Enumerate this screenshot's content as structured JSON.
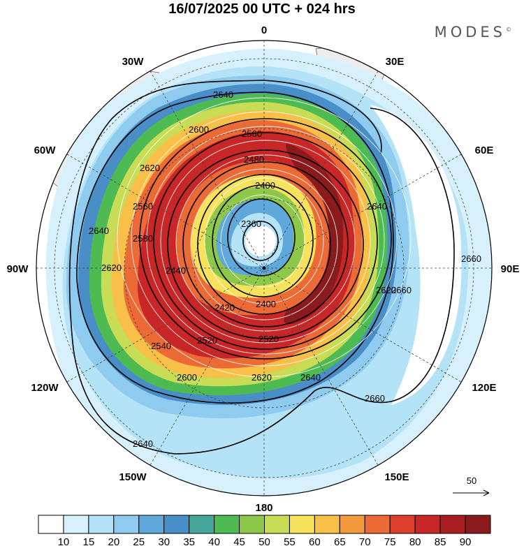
{
  "header": {
    "title": "16/07/2025  00 UTC  + 024 hrs",
    "brand": "MODES",
    "brand_mark": "©"
  },
  "map": {
    "projection": "polar stereographic (south pole centred)",
    "longitude_labels": [
      "0",
      "30E",
      "60E",
      "90E",
      "120E",
      "150E",
      "180",
      "150W",
      "120W",
      "90W",
      "60W",
      "30W"
    ],
    "contour_labels": [
      "2360",
      "2400",
      "2420",
      "2440",
      "2480",
      "2520",
      "2540",
      "2560",
      "2580",
      "2600",
      "2620",
      "2640",
      "2660"
    ],
    "reference_vector_label": "50"
  },
  "colorbar": {
    "ticks": [
      "10",
      "15",
      "20",
      "25",
      "30",
      "35",
      "40",
      "45",
      "50",
      "55",
      "60",
      "65",
      "70",
      "75",
      "80",
      "85",
      "90"
    ],
    "colors": [
      "#ffffff",
      "#d6f1fc",
      "#b4e3f8",
      "#8ecbee",
      "#5fa8dc",
      "#4a8ec7",
      "#47a69a",
      "#4dbb52",
      "#8dc84a",
      "#c8dc55",
      "#f7e25b",
      "#f8bf49",
      "#f39a3d",
      "#ec6a35",
      "#de3f2e",
      "#c92628",
      "#a81e22",
      "#8b1a1c"
    ]
  }
}
